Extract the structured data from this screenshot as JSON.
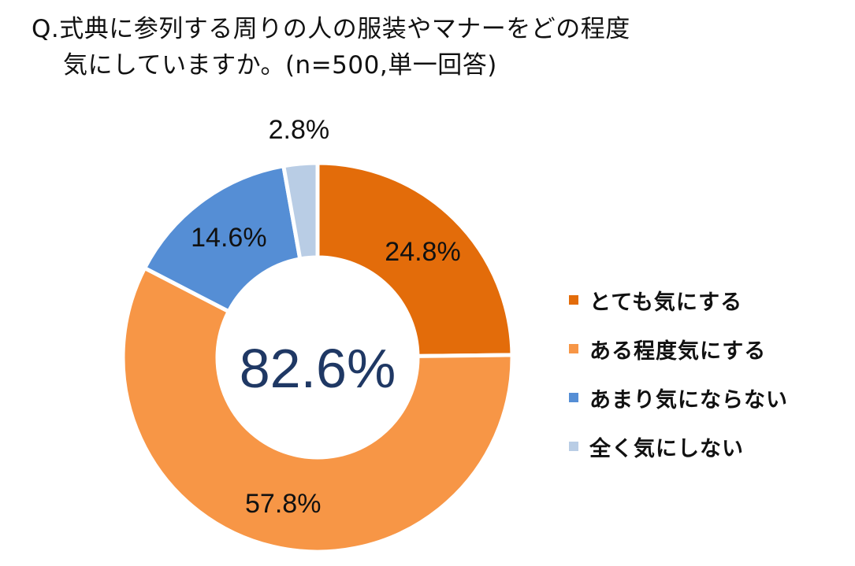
{
  "title": {
    "line1": "Q.式典に参列する周りの人の服装やマナーをどの程度",
    "line2": "気にしていますか。(n=500,単一回答)"
  },
  "chart_data": {
    "type": "pie",
    "donut": true,
    "center_label": "82.6%",
    "legend_position": "right",
    "slices": [
      {
        "name": "とても気にする",
        "value": 24.8,
        "label": "24.8%",
        "color": "#E36C0A"
      },
      {
        "name": "ある程度気にする",
        "value": 57.8,
        "label": "57.8%",
        "color": "#F79646"
      },
      {
        "name": "あまり気にならない",
        "value": 14.6,
        "label": "14.6%",
        "color": "#558ED5"
      },
      {
        "name": "全く気にしない",
        "value": 2.8,
        "label": "2.8%",
        "color": "#B9CDE5"
      }
    ]
  },
  "colors": {
    "center_text": "#1F3864",
    "label_text": "#111111"
  }
}
